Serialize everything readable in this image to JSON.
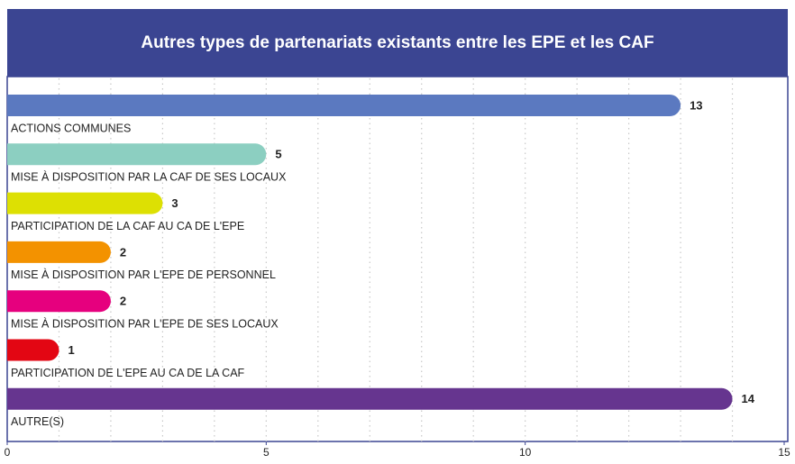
{
  "chart_data": {
    "type": "bar",
    "orientation": "horizontal",
    "title": "Autres types de partenariats existants entre les EPE et les CAF",
    "categories": [
      "ACTIONS COMMUNES",
      "MISE À DISPOSITION PAR LA CAF DE SES LOCAUX",
      "PARTICIPATION DE LA CAF AU CA DE L'EPE",
      "MISE À DISPOSITION PAR L'EPE DE PERSONNEL",
      "MISE À DISPOSITION PAR L'EPE DE SES LOCAUX",
      "PARTICIPATION DE L'EPE AU CA DE LA CAF",
      "AUTRE(S)"
    ],
    "values": [
      13,
      5,
      3,
      2,
      2,
      1,
      14
    ],
    "colors": [
      "#5b79c0",
      "#8ccfc1",
      "#dde003",
      "#f39200",
      "#e6007e",
      "#e30613",
      "#66358f"
    ],
    "xlim": [
      0,
      15
    ],
    "xticks": [
      0,
      5,
      10,
      15
    ],
    "grid_xticks": [
      1,
      2,
      3,
      4,
      5,
      6,
      7,
      8,
      9,
      10,
      11,
      12,
      13,
      14
    ],
    "grid": true
  }
}
